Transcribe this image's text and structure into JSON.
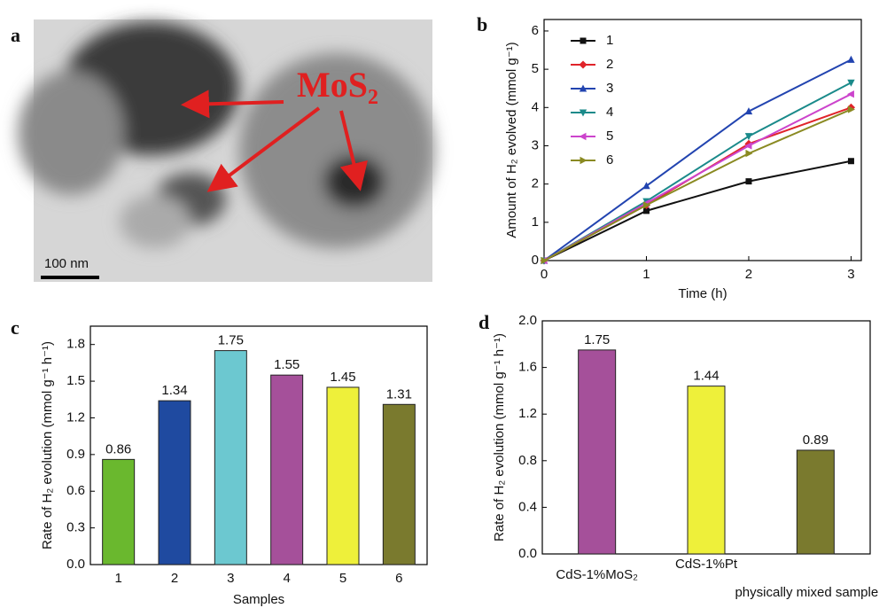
{
  "panel_labels": [
    "a",
    "b",
    "c",
    "d"
  ],
  "image": {
    "label": "MoS₂",
    "scale_bar": "100 nm"
  },
  "chart_data": [
    {
      "type": "line",
      "xlabel": "Time (h)",
      "ylabel": "Amount of H₂ evolved (mmol g⁻¹)",
      "x": [
        0,
        1,
        2,
        3
      ],
      "xlim": [
        0,
        3.1
      ],
      "xticks": [
        0,
        1,
        2,
        3
      ],
      "ylim": [
        0,
        6.3
      ],
      "yticks": [
        0,
        1,
        2,
        3,
        4,
        5,
        6
      ],
      "legend": "upper left",
      "series": [
        {
          "name": "1",
          "color": "#111111",
          "marker": "square",
          "values": [
            0,
            1.3,
            2.07,
            2.6
          ]
        },
        {
          "name": "2",
          "color": "#e0242a",
          "marker": "diamond",
          "values": [
            0,
            1.45,
            3.05,
            4.0
          ]
        },
        {
          "name": "3",
          "color": "#2244b0",
          "marker": "triangle-up",
          "values": [
            0,
            1.95,
            3.9,
            5.25
          ]
        },
        {
          "name": "4",
          "color": "#1a8a8a",
          "marker": "triangle-down",
          "values": [
            0,
            1.55,
            3.25,
            4.65
          ]
        },
        {
          "name": "5",
          "color": "#cc44cc",
          "marker": "triangle-left",
          "values": [
            0,
            1.5,
            3.0,
            4.35
          ]
        },
        {
          "name": "6",
          "color": "#8a8a22",
          "marker": "triangle-right",
          "values": [
            0,
            1.45,
            2.8,
            3.95
          ]
        }
      ]
    },
    {
      "type": "bar",
      "xlabel": "Samples",
      "ylabel": "Rate of H₂ evolution (mmol g⁻¹ h⁻¹)",
      "categories": [
        "1",
        "2",
        "3",
        "4",
        "5",
        "6"
      ],
      "values": [
        0.86,
        1.34,
        1.75,
        1.55,
        1.45,
        1.31
      ],
      "colors": [
        "#6ab82e",
        "#1f4aa0",
        "#6cc8d0",
        "#a5509a",
        "#eef03a",
        "#7a7a2e"
      ],
      "ylim": [
        0,
        1.95
      ],
      "yticks": [
        {
          "value": 0,
          "label": "0.0"
        },
        0.3,
        0.6,
        0.9,
        1.2,
        1.5,
        1.8
      ]
    },
    {
      "type": "bar",
      "ylabel": "Rate of H₂ evolution (mmol g⁻¹ h⁻¹)",
      "categories": [
        "CdS-1%MoS₂",
        "CdS-1%Pt",
        "physically mixed sample"
      ],
      "values": [
        1.75,
        1.44,
        0.89
      ],
      "colors": [
        "#a5509a",
        "#eef03a",
        "#7a7a2e"
      ],
      "ylim": [
        0,
        2.0
      ],
      "yticks": [
        {
          "value": 0,
          "label": "0.0"
        },
        0.4,
        0.8,
        1.2,
        1.6,
        {
          "value": 2.0,
          "label": "2.0"
        }
      ]
    }
  ]
}
